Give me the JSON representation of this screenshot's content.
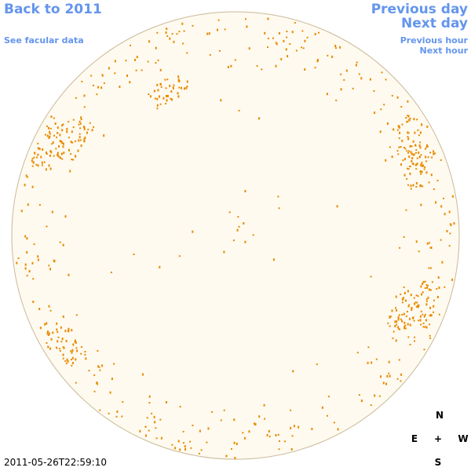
{
  "nav": {
    "back": "Back to 2011",
    "facular": "See facular data",
    "previous_day": "Previous day",
    "next_day": "Next day",
    "previous_hour": "Previous hour",
    "next_hour": "Next hour"
  },
  "timestamp": "2011-05-26T22:59:10",
  "compass": {
    "north": "N",
    "east": "E",
    "center": "+",
    "west": "W",
    "south": "S"
  }
}
